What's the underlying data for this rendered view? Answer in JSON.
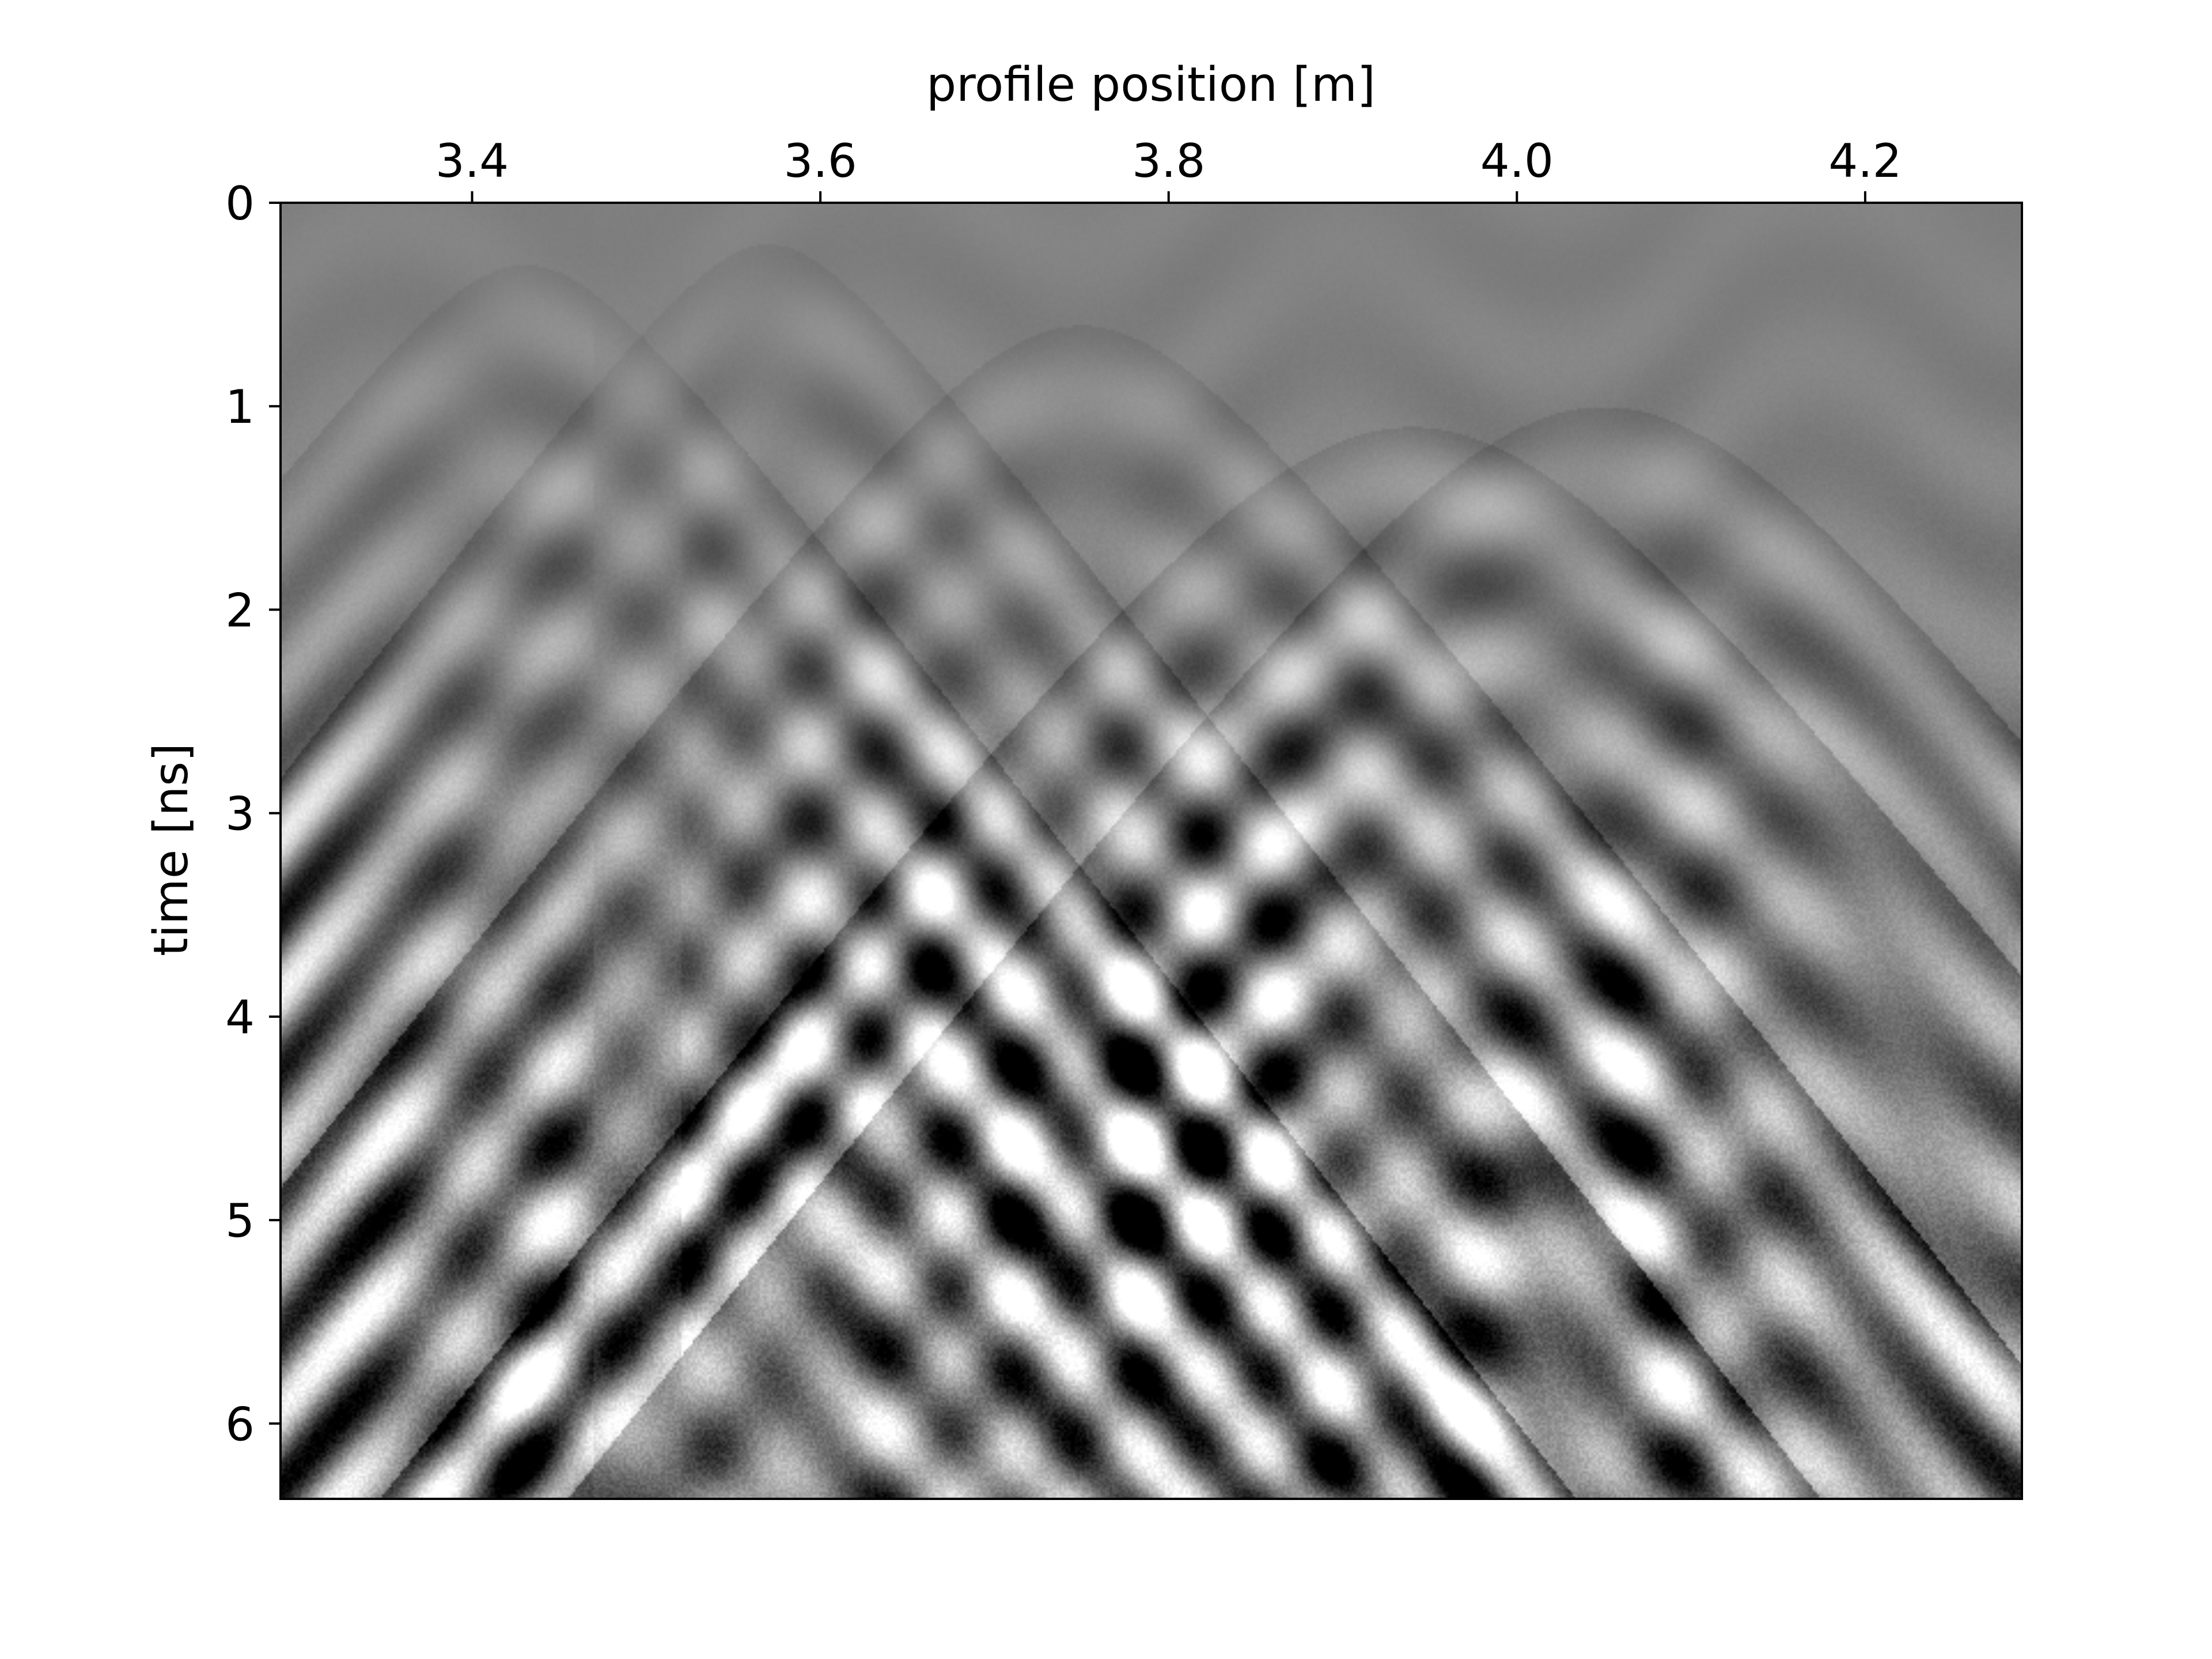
{
  "chart_data": {
    "type": "heatmap",
    "title": "",
    "xlabel": "profile position [m]",
    "ylabel": "time [ns]",
    "xaxis_position": "top",
    "yaxis_inverted": true,
    "xlim": [
      3.29,
      4.29
    ],
    "ylim": [
      6.37,
      0
    ],
    "x_ticks": [
      3.4,
      3.6,
      3.8,
      4.0,
      4.2
    ],
    "x_tick_labels": [
      "3.4",
      "3.6",
      "3.8",
      "4.0",
      "4.2"
    ],
    "y_ticks": [
      0,
      1,
      2,
      3,
      4,
      5,
      6
    ],
    "y_tick_labels": [
      "0",
      "1",
      "2",
      "3",
      "4",
      "5",
      "6"
    ],
    "colormap": "gray",
    "grid": false,
    "legend": "none",
    "trace_discontinuities_x": [
      3.47,
      3.52
    ],
    "hyperbola_apexes": [
      {
        "x": 3.43,
        "t": 0.6
      },
      {
        "x": 3.57,
        "t": 0.5
      },
      {
        "x": 3.75,
        "t": 0.9
      },
      {
        "x": 3.94,
        "t": 1.4
      },
      {
        "x": 4.05,
        "t": 1.3
      }
    ]
  }
}
